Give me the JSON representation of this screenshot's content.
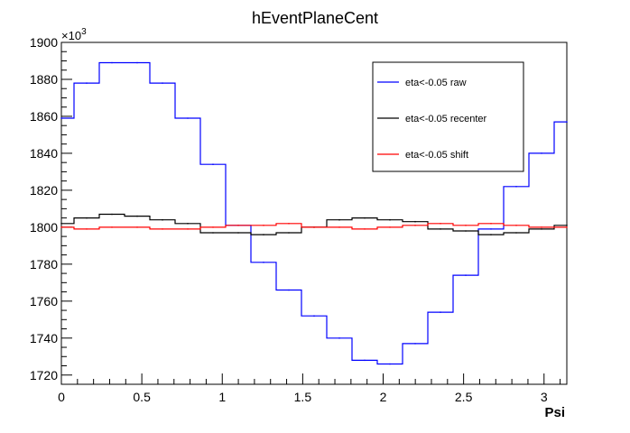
{
  "chart_data": {
    "type": "line",
    "title": "hEventPlaneCent",
    "xlabel": "Psi",
    "ylabel": "",
    "y_multiplier_label": "×10",
    "y_multiplier_exp": "3",
    "xlim": [
      0,
      3.1416
    ],
    "ylim": [
      1715,
      1900
    ],
    "x_ticks": [
      0,
      0.5,
      1,
      1.5,
      2,
      2.5,
      3
    ],
    "x_tick_labels": [
      "0",
      "0.5",
      "1",
      "1.5",
      "2",
      "2.5",
      "3"
    ],
    "y_ticks": [
      1720,
      1740,
      1760,
      1780,
      1800,
      1820,
      1840,
      1860,
      1880,
      1900
    ],
    "y_tick_labels": [
      "1720",
      "1740",
      "1760",
      "1780",
      "1800",
      "1820",
      "1840",
      "1860",
      "1880",
      "1900"
    ],
    "x": [
      0.0,
      0.1571,
      0.3142,
      0.4712,
      0.6283,
      0.7854,
      0.9425,
      1.0996,
      1.2566,
      1.4137,
      1.5708,
      1.7279,
      1.885,
      2.042,
      2.1991,
      2.3562,
      2.5133,
      2.6704,
      2.8274,
      2.9845,
      3.1416
    ],
    "series": [
      {
        "name": "eta<-0.05 raw",
        "color": "#0000ff",
        "values": [
          1859,
          1878,
          1889,
          1889,
          1878,
          1859,
          1834,
          1801,
          1781,
          1766,
          1752,
          1740,
          1728,
          1726,
          1737,
          1754,
          1774,
          1799,
          1822,
          1840,
          1857
        ]
      },
      {
        "name": "eta<-0.05 recenter",
        "color": "#000000",
        "values": [
          1802,
          1805,
          1807,
          1806,
          1804,
          1802,
          1797,
          1797,
          1796,
          1797,
          1800,
          1804,
          1805,
          1804,
          1803,
          1799,
          1798,
          1796,
          1797,
          1799,
          1801
        ]
      },
      {
        "name": "eta<-0.05 shift",
        "color": "#ff0000",
        "values": [
          1800,
          1799,
          1800,
          1800,
          1799,
          1799,
          1800,
          1801,
          1801,
          1802,
          1800,
          1800,
          1799,
          1800,
          1801,
          1802,
          1801,
          1802,
          1801,
          1800,
          1800
        ]
      }
    ],
    "legend_position": "top-right",
    "grid": false
  }
}
